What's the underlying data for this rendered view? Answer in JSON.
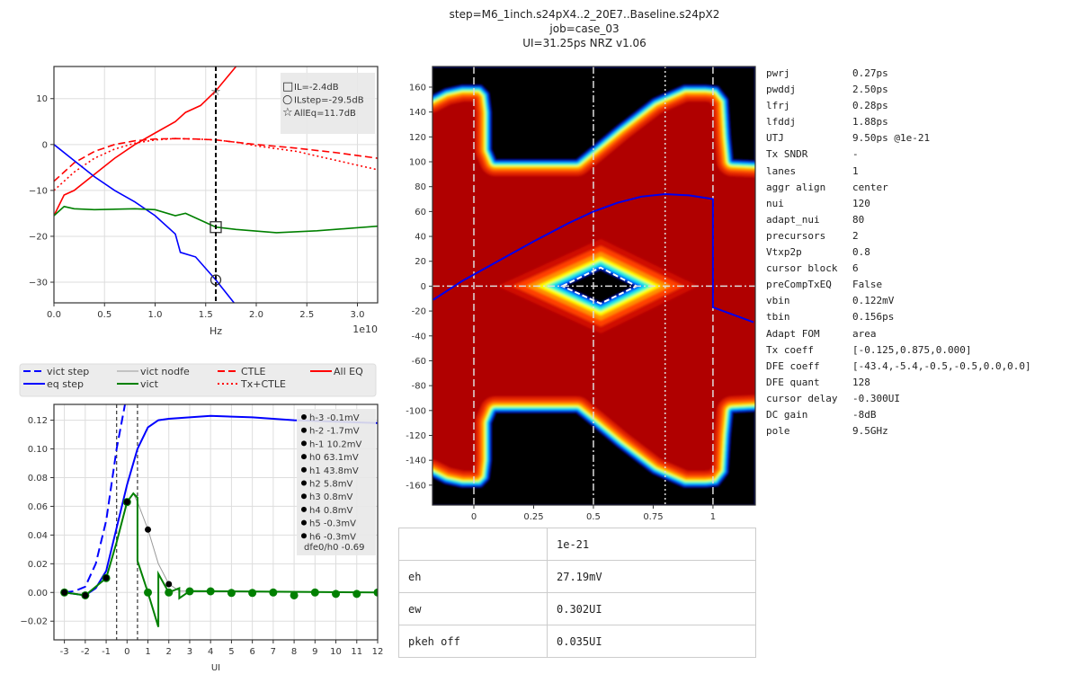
{
  "title": {
    "line1": "step=M6_1inch.s24pX4..2_20E7..Baseline.s24pX2",
    "line2": "job=case_03",
    "line3": "UI=31.25ps NRZ v1.06"
  },
  "params": [
    {
      "key": "pwrj",
      "value": "0.27ps"
    },
    {
      "key": "pwddj",
      "value": "2.50ps"
    },
    {
      "key": "lfrj",
      "value": "0.28ps"
    },
    {
      "key": "lfddj",
      "value": "1.88ps"
    },
    {
      "key": "UTJ",
      "value": "9.50ps @1e-21"
    },
    {
      "key": "Tx SNDR",
      "value": "-"
    },
    {
      "key": "lanes",
      "value": "1"
    },
    {
      "key": "aggr align",
      "value": "center"
    },
    {
      "key": "nui",
      "value": "120"
    },
    {
      "key": "adapt_nui",
      "value": "80"
    },
    {
      "key": "precursors",
      "value": "2"
    },
    {
      "key": "Vtxp2p",
      "value": "0.8"
    },
    {
      "key": "cursor block",
      "value": "6"
    },
    {
      "key": "preCompTxEQ",
      "value": "False"
    },
    {
      "key": "vbin",
      "value": "0.122mV"
    },
    {
      "key": "tbin",
      "value": "0.156ps"
    },
    {
      "key": "Adapt FOM",
      "value": "area"
    },
    {
      "key": "Tx coeff",
      "value": "[-0.125,0.875,0.000]"
    },
    {
      "key": "DFE coeff",
      "value": "[-43.4,-5.4,-0.5,-0.5,0.0,0.0]"
    },
    {
      "key": "DFE quant",
      "value": "128"
    },
    {
      "key": "cursor delay",
      "value": "-0.300UI"
    },
    {
      "key": "DC gain",
      "value": "-8dB"
    },
    {
      "key": "pole",
      "value": "9.5GHz"
    }
  ],
  "eye_table": {
    "header": [
      "",
      "1e-21"
    ],
    "rows": [
      [
        "eh",
        "27.19mV"
      ],
      [
        "ew",
        "0.302UI"
      ],
      [
        "pkeh off",
        "0.035UI"
      ]
    ]
  },
  "legend": {
    "entries": [
      {
        "label": "vict step",
        "color": "#0000ff",
        "style": "dashed"
      },
      {
        "label": "eq step",
        "color": "#0000ff",
        "style": "solid"
      },
      {
        "label": "vict nodfe",
        "color": "#999999",
        "style": "solid"
      },
      {
        "label": "vict",
        "color": "#008000",
        "style": "solid"
      },
      {
        "label": "CTLE",
        "color": "#ff0000",
        "style": "dashed"
      },
      {
        "label": "Tx+CTLE",
        "color": "#ff0000",
        "style": "dotted"
      },
      {
        "label": "All EQ",
        "color": "#ff0000",
        "style": "solid"
      }
    ]
  },
  "chart_data": [
    {
      "type": "line",
      "xlabel": "Hz",
      "x_multiplier_label": "1e10",
      "xlim": [
        0,
        3.2
      ],
      "ylim": [
        -34.5,
        17
      ],
      "xticks": [
        0,
        0.5,
        1.0,
        1.5,
        2.0,
        2.5,
        3.0
      ],
      "xtick_labels": [
        "0.0",
        "0.5",
        "1.0",
        "1.5",
        "2.0",
        "2.5",
        "3.0"
      ],
      "yticks": [
        -30,
        -20,
        -10,
        0,
        10
      ],
      "ytick_labels": [
        "−30",
        "−20",
        "−10",
        "0",
        "10"
      ],
      "grid": true,
      "vline": 1.6,
      "series": [
        {
          "color": "#ff0000",
          "style": "solid",
          "x": [
            0,
            0.1,
            0.2,
            0.4,
            0.6,
            0.8,
            1.0,
            1.2,
            1.3,
            1.45,
            1.6,
            1.8
          ],
          "y": [
            -15.5,
            -11,
            -10,
            -6.5,
            -3,
            0,
            2.5,
            5,
            7,
            8.5,
            11.7,
            17
          ]
        },
        {
          "color": "#ff0000",
          "style": "dashed",
          "x": [
            0,
            0.2,
            0.4,
            0.6,
            0.8,
            1.0,
            1.2,
            1.4,
            1.6,
            1.8,
            2.0,
            2.4,
            2.8,
            3.2
          ],
          "y": [
            -8,
            -4,
            -1.5,
            0,
            0.8,
            1.2,
            1.3,
            1.2,
            1,
            0.5,
            0,
            -0.8,
            -1.8,
            -3
          ]
        },
        {
          "color": "#ff0000",
          "style": "dotted",
          "x": [
            0,
            0.2,
            0.4,
            0.6,
            0.8,
            1.0,
            1.2,
            1.4,
            1.6,
            1.8,
            2.0,
            2.4,
            2.8,
            3.2
          ],
          "y": [
            -10,
            -6,
            -3,
            -1,
            0.3,
            1.0,
            1.3,
            1.2,
            1,
            0.5,
            -0.3,
            -1.5,
            -3.5,
            -5.5
          ]
        },
        {
          "color": "#0000ff",
          "style": "solid",
          "x": [
            0,
            0.2,
            0.4,
            0.6,
            0.8,
            1.0,
            1.2,
            1.25,
            1.4,
            1.6,
            1.78
          ],
          "y": [
            0,
            -3.5,
            -7,
            -10,
            -12.5,
            -15.5,
            -19.5,
            -23.5,
            -24.5,
            -29.5,
            -34.5
          ]
        },
        {
          "color": "#008000",
          "style": "solid",
          "x": [
            0,
            0.1,
            0.2,
            0.4,
            0.8,
            1.0,
            1.2,
            1.3,
            1.5,
            1.6,
            1.8,
            2.2,
            2.6,
            3.2
          ],
          "y": [
            -15.5,
            -13.5,
            -14,
            -14.2,
            -14,
            -14.2,
            -15.5,
            -15,
            -17,
            -18,
            -18.5,
            -19.2,
            -18.8,
            -17.8
          ]
        }
      ],
      "markers": [
        {
          "shape": "square",
          "x": 1.6,
          "y": -18,
          "label": "IL=-2.4dB"
        },
        {
          "shape": "circle",
          "x": 1.6,
          "y": -29.5,
          "label": "ILstep=-29.5dB"
        },
        {
          "shape": "star",
          "x": 1.6,
          "y": 11.7,
          "label": "AllEq=11.7dB"
        }
      ],
      "legend_position": "top-right"
    },
    {
      "type": "line",
      "xlabel": "UI",
      "xlim": [
        -3.5,
        12
      ],
      "ylim": [
        -0.033,
        0.131
      ],
      "xticks": [
        -3,
        -2,
        -1,
        0,
        1,
        2,
        3,
        4,
        5,
        6,
        7,
        8,
        9,
        10,
        11,
        12
      ],
      "xtick_labels": [
        "-3",
        "-2",
        "-1",
        "0",
        "1",
        "2",
        "3",
        "4",
        "5",
        "6",
        "7",
        "8",
        "9",
        "10",
        "11",
        "12"
      ],
      "yticks": [
        -0.02,
        0,
        0.02,
        0.04,
        0.06,
        0.08,
        0.1,
        0.12
      ],
      "ytick_labels": [
        "−0.02",
        "0.00",
        "0.02",
        "0.04",
        "0.06",
        "0.08",
        "0.10",
        "0.12"
      ],
      "grid": true,
      "vlines": [
        -0.5,
        0.5
      ],
      "series": [
        {
          "name": "vict step",
          "color": "#0000ff",
          "style": "dashed",
          "x": [
            -3,
            -2.5,
            -2,
            -1.5,
            -1,
            -0.5,
            -0.1
          ],
          "y": [
            0,
            0.001,
            0.004,
            0.02,
            0.05,
            0.1,
            0.131
          ]
        },
        {
          "name": "eq step",
          "color": "#0000ff",
          "style": "solid",
          "x": [
            -3,
            -2,
            -1.5,
            -1,
            -0.5,
            0,
            0.5,
            1,
            1.5,
            2,
            4,
            6,
            8,
            12
          ],
          "y": [
            0,
            -0.002,
            0.003,
            0.015,
            0.045,
            0.075,
            0.1,
            0.115,
            0.12,
            0.121,
            0.123,
            0.122,
            0.12,
            0.118
          ]
        },
        {
          "name": "vict nodfe",
          "color": "#999999",
          "style": "thin",
          "x": [
            -3,
            -2,
            -1,
            -0.5,
            0,
            0.3,
            0.5,
            1,
            1.5,
            2,
            2.5,
            3,
            12
          ],
          "y": [
            0,
            -0.002,
            0.01,
            0.035,
            0.063,
            0.069,
            0.063,
            0.044,
            0.02,
            0.006,
            0.001,
            0.001,
            0
          ]
        },
        {
          "name": "vict",
          "color": "#008000",
          "style": "solid",
          "x": [
            -3,
            -2,
            -1,
            -0.5,
            0,
            0.3,
            0.5,
            0.5,
            1,
            1.5,
            1.5,
            2,
            2.5,
            2.5,
            3,
            12
          ],
          "y": [
            0,
            -0.002,
            0.01,
            0.035,
            0.063,
            0.069,
            0.066,
            0.022,
            0,
            -0.024,
            0.013,
            0,
            0.003,
            -0.004,
            0.001,
            0
          ]
        }
      ],
      "cursor_points": {
        "x": [
          -3,
          -2,
          -1,
          0,
          1,
          2
        ],
        "y": [
          0,
          -0.002,
          0.0102,
          0.0631,
          0.0438,
          0.0058
        ]
      },
      "green_points": {
        "x": [
          -3,
          -2,
          -1,
          0,
          1,
          2,
          3,
          4,
          5,
          6,
          7,
          8,
          9,
          10,
          11,
          12
        ],
        "y": [
          0,
          -0.002,
          0.01,
          0.063,
          0,
          0,
          0.0008,
          0.0008,
          -0.0003,
          -0.0003,
          0,
          -0.002,
          0,
          -0.001,
          -0.001,
          0
        ]
      },
      "annotation": [
        "h-3 -0.1mV",
        "h-2 -1.7mV",
        "h-1 10.2mV",
        "h0 63.1mV",
        "h1 43.8mV",
        "h2 5.8mV",
        "h3 0.8mV",
        "h4 0.8mV",
        "h5 -0.3mV",
        "h6 -0.3mV"
      ],
      "annotation_footer": "dfe0/h0 -0.69",
      "legend_position": "top-outside"
    },
    {
      "type": "heatmap",
      "xlim": [
        -0.173,
        1.177
      ],
      "ylim": [
        -176,
        176.6
      ],
      "xticks": [
        0,
        0.25,
        0.5,
        0.75,
        1
      ],
      "xtick_labels": [
        "0",
        "0.25",
        "0.5",
        "0.75",
        "1"
      ],
      "yticks": [
        -160,
        -140,
        -120,
        -100,
        -80,
        -60,
        -40,
        -20,
        0,
        20,
        40,
        60,
        80,
        100,
        120,
        140,
        160
      ],
      "ytick_labels": [
        "-160",
        "-140",
        "-120",
        "-100",
        "-80",
        "-60",
        "-40",
        "-20",
        "0",
        "20",
        "40",
        "60",
        "80",
        "100",
        "120",
        "140",
        "160"
      ],
      "colormap": "jet-on-black",
      "top_hole": [
        [
          -0.18,
          177
        ],
        [
          -0.18,
          152
        ],
        [
          -0.12,
          158
        ],
        [
          -0.05,
          161
        ],
        [
          0.03,
          161
        ],
        [
          0.06,
          155
        ],
        [
          0.07,
          140
        ],
        [
          0.07,
          110
        ],
        [
          0.09,
          101
        ],
        [
          0.43,
          101
        ],
        [
          0.5,
          112
        ],
        [
          0.6,
          128
        ],
        [
          0.75,
          150
        ],
        [
          0.88,
          161
        ],
        [
          0.97,
          161
        ],
        [
          1.02,
          160
        ],
        [
          1.06,
          150
        ],
        [
          1.07,
          120
        ],
        [
          1.08,
          101
        ],
        [
          1.18,
          100
        ],
        [
          1.18,
          177
        ]
      ],
      "center_eye": [
        [
          0.37,
          0
        ],
        [
          0.53,
          14
        ],
        [
          0.68,
          0
        ],
        [
          0.53,
          -14
        ]
      ],
      "eye_contour": [
        [
          0.37,
          0
        ],
        [
          0.53,
          15
        ],
        [
          0.68,
          0
        ],
        [
          0.53,
          -14
        ]
      ],
      "pulse_trace": {
        "x": [
          -0.17,
          -0.05,
          0.1,
          0.25,
          0.4,
          0.5,
          0.6,
          0.7,
          0.8,
          0.9,
          1.0,
          1.0,
          1.17
        ],
        "y": [
          -11,
          4,
          20,
          36,
          51,
          60,
          67,
          72,
          74,
          73,
          70,
          -17,
          -29
        ]
      },
      "vlines": [
        {
          "x": 0,
          "style": "dashed"
        },
        {
          "x": 0.5,
          "style": "dashdot"
        },
        {
          "x": 0.8,
          "style": "dotted"
        },
        {
          "x": 1,
          "style": "dashed"
        }
      ],
      "hline": 0
    }
  ]
}
